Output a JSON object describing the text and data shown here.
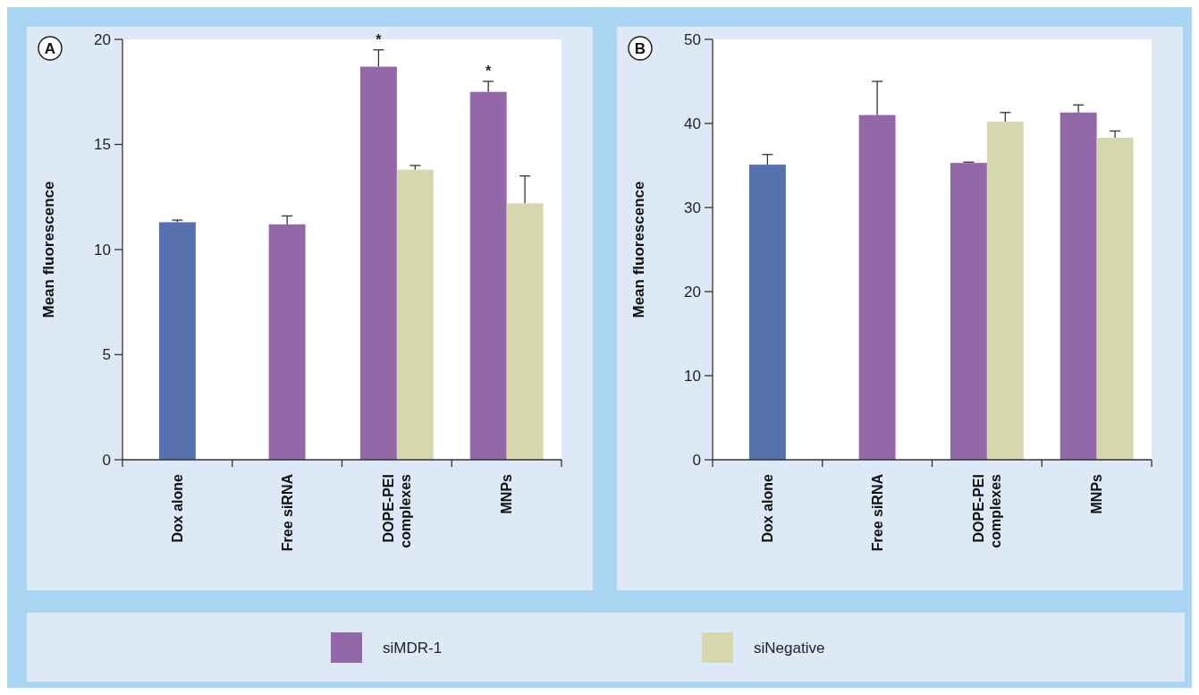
{
  "chart_data": [
    {
      "type": "bar",
      "title": "A",
      "ylabel": "Mean fluorescence",
      "categories": [
        "Dox alone",
        "Free siRNA",
        "DOPE-PEI complexes",
        "MNPs"
      ],
      "series": [
        {
          "color": "#5572ae",
          "values": [
            11.3,
            null,
            null,
            null
          ],
          "errors": [
            0.1,
            null,
            null,
            null
          ]
        },
        {
          "name": "siMDR-1",
          "color": "#9368a8",
          "values": [
            null,
            11.2,
            18.7,
            17.5
          ],
          "errors": [
            null,
            0.4,
            0.8,
            0.5
          ]
        },
        {
          "name": "siNegative",
          "color": "#d6d7ad",
          "values": [
            null,
            null,
            13.8,
            12.2
          ],
          "errors": [
            null,
            null,
            0.2,
            1.3
          ]
        }
      ],
      "ylim": [
        0,
        20
      ],
      "yticks": [
        0,
        5,
        10,
        15,
        20
      ],
      "annotations": [
        {
          "text": "*",
          "x": "DOPE-PEI complexes",
          "y": 18.7
        },
        {
          "text": "*",
          "x": "MNPs",
          "y": 17.5
        }
      ],
      "legend": "bottom"
    },
    {
      "type": "bar",
      "title": "B",
      "ylabel": "Mean fluorescence",
      "categories": [
        "Dox alone",
        "Free siRNA",
        "DOPE-PEI complexes",
        "MNPs"
      ],
      "series": [
        {
          "color": "#5572ae",
          "values": [
            35.1,
            null,
            null,
            null
          ],
          "errors": [
            1.2,
            null,
            null,
            null
          ]
        },
        {
          "color": "#9368a8",
          "values": [
            null,
            41.0,
            35.3,
            41.3
          ],
          "errors": [
            null,
            4.0,
            0.1,
            0.9
          ]
        },
        {
          "color": "#d6d7ad",
          "values": [
            null,
            null,
            40.2,
            38.3
          ],
          "errors": [
            null,
            null,
            1.1,
            0.8
          ]
        }
      ],
      "ylim": [
        0,
        50
      ],
      "yticks": [
        0,
        10,
        20,
        30,
        40,
        50
      ]
    }
  ]
}
